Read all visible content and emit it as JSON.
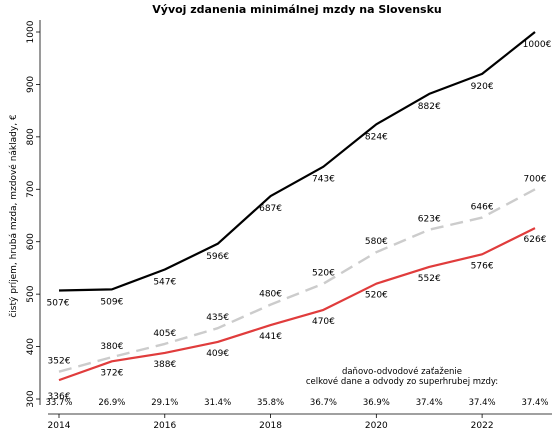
{
  "chart_data": {
    "type": "line",
    "title": "Vývoj zdanenia minimálnej mzdy na Slovensku",
    "ylabel": "čistý príjem, hrubá mzda, mzdové náklady, €",
    "xlabel": "",
    "ylim": [
      300,
      1000
    ],
    "y_ticks": [
      300,
      400,
      500,
      600,
      700,
      800,
      900,
      1000
    ],
    "x_ticks": [
      2014,
      2016,
      2018,
      2020,
      2022
    ],
    "x": [
      2014,
      2015,
      2016,
      2017,
      2018,
      2019,
      2020,
      2021,
      2022,
      2023
    ],
    "series": [
      {
        "id": "costs",
        "color": "#000000",
        "dash": "solid",
        "values": [
          507,
          509,
          547,
          596,
          687,
          743,
          824,
          882,
          920,
          1000
        ],
        "labels": [
          "507€",
          "509€",
          "547€",
          "596€",
          "687€",
          "743€",
          "824€",
          "882€",
          "920€",
          "1000€"
        ]
      },
      {
        "id": "gross",
        "color": "#cccccc",
        "dash": "dashed",
        "values": [
          352,
          380,
          405,
          435,
          480,
          520,
          580,
          623,
          646,
          700
        ],
        "labels": [
          "352€",
          "380€",
          "405€",
          "435€",
          "480€",
          "520€",
          "580€",
          "623€",
          "646€",
          "700€"
        ]
      },
      {
        "id": "net",
        "color": "#e03c3c",
        "dash": "solid",
        "values": [
          336,
          372,
          388,
          409,
          441,
          470,
          520,
          552,
          576,
          626
        ],
        "labels": [
          "336€",
          "372€",
          "388€",
          "409€",
          "441€",
          "470€",
          "520€",
          "552€",
          "576€",
          "626€"
        ]
      }
    ],
    "tax_burden": {
      "heading_line1": "daňovo-odvodové zaťaženie",
      "heading_line2": "celkové dane a odvody zo superhrubej mzdy:",
      "values": [
        "33.7%",
        "26.9%",
        "29.1%",
        "31.4%",
        "35.8%",
        "36.7%",
        "36.9%",
        "37.4%",
        "37.4%",
        "37.4%"
      ]
    },
    "grid": false,
    "legend": "none"
  }
}
